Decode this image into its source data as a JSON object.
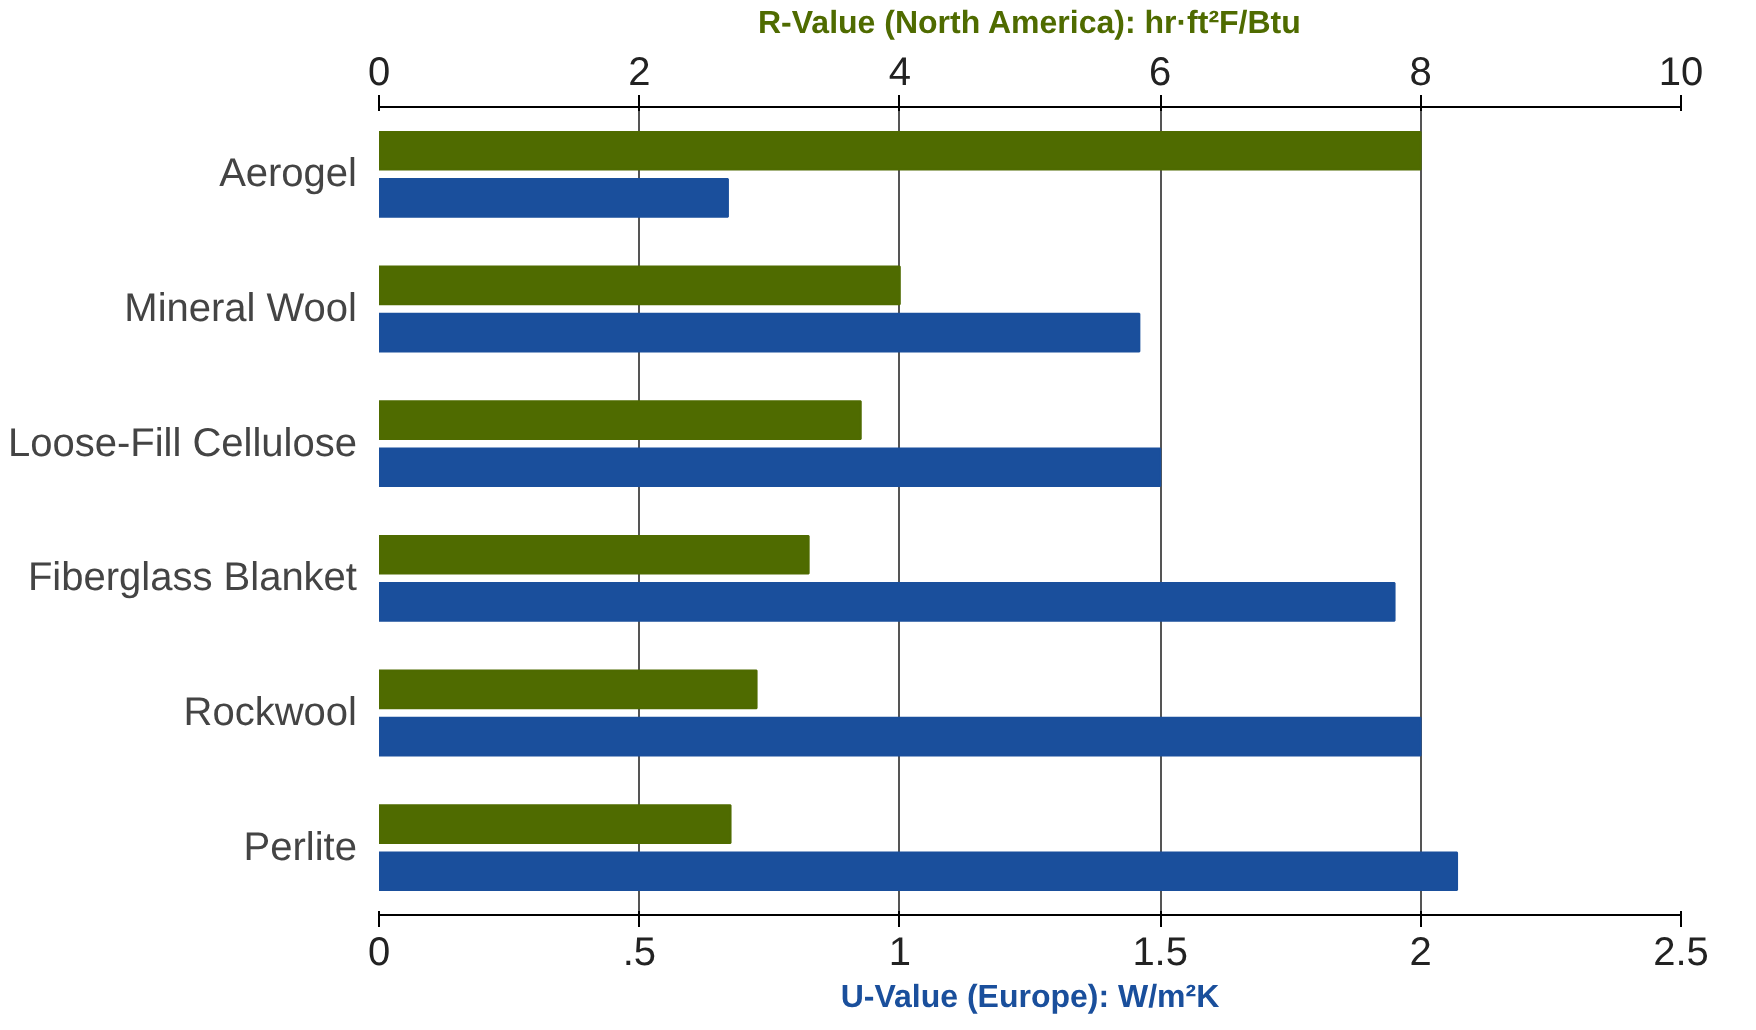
{
  "chart_data": {
    "type": "bar",
    "orientation": "horizontal",
    "categories": [
      "Aerogel",
      "Mineral Wool",
      "Loose-Fill Cellulose",
      "Fiberglass Blanket",
      "Rockwool",
      "Perlite"
    ],
    "x2label": "R-Value (North America): hr·ft²F/Btu",
    "xlabel": "U-Value (Europe): W/m²K",
    "series": [
      {
        "color": "#4f6b00",
        "axis": "x2",
        "values": [
          8.0,
          4.0,
          3.7,
          3.3,
          2.9,
          2.7
        ]
      },
      {
        "color": "#1a4f9c",
        "values": [
          0.67,
          1.46,
          1.5,
          1.95,
          2.0,
          2.07
        ]
      }
    ],
    "xlim": [
      0,
      2.5
    ],
    "xticks": [
      0,
      {
        "value": 0.5,
        "label": ".5"
      },
      1,
      1.5,
      2,
      2.5
    ],
    "x2lim": [
      0,
      10
    ],
    "x2ticks": [
      0,
      2,
      4,
      6,
      8,
      10
    ],
    "grid": "x"
  }
}
